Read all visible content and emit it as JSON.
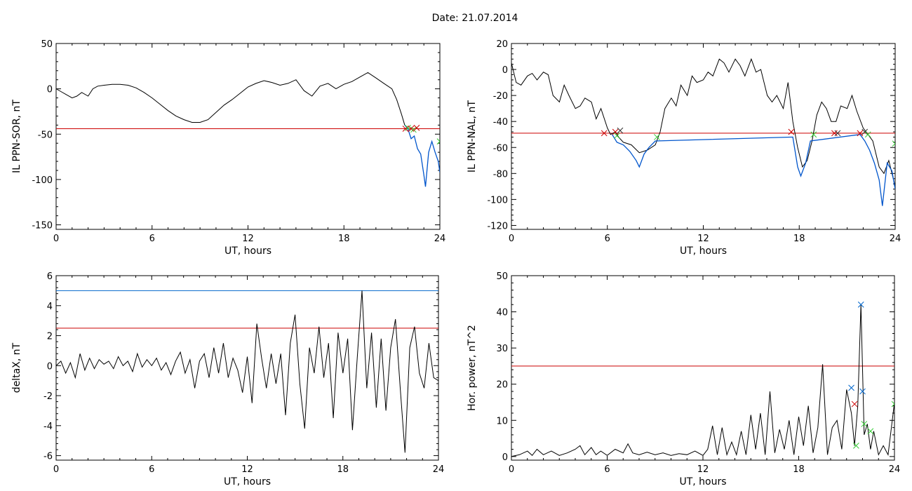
{
  "figure": {
    "title": "Date:  21.07.2014"
  },
  "colors": {
    "trace": "#000000",
    "threshold_red": "#cc0000",
    "threshold_blue": "#0066cc",
    "below_trace": "#0055cc",
    "marker_red": "#cc0000",
    "marker_green": "#33cc33",
    "marker_blue": "#0066cc"
  },
  "chart_data": [
    {
      "type": "line",
      "xlabel": "UT, hours",
      "ylabel": "IL PPN-SOR, nT",
      "xlim": [
        0,
        24
      ],
      "ylim": [
        -155,
        50
      ],
      "xticks": [
        0,
        6,
        12,
        18,
        24
      ],
      "yticks": [
        -150,
        -100,
        -50,
        0,
        50
      ],
      "series": [
        {
          "x": [
            0,
            0.3,
            0.6,
            1,
            1.3,
            1.6,
            2,
            2.3,
            2.6,
            3,
            3.5,
            4,
            4.5,
            5,
            5.5,
            6,
            6.5,
            7,
            7.5,
            8,
            8.5,
            9,
            9.5,
            10,
            10.5,
            11,
            11.5,
            12,
            12.5,
            13,
            13.5,
            14,
            14.5,
            15,
            15.5,
            16,
            16.5,
            17,
            17.5,
            18,
            18.5,
            19,
            19.5,
            20,
            20.5,
            21,
            21.3,
            21.6,
            21.8
          ],
          "y": [
            0,
            -3,
            -6,
            -10,
            -8,
            -4,
            -8,
            0,
            3,
            4,
            5,
            5,
            4,
            1,
            -4,
            -10,
            -17,
            -24,
            -30,
            -34,
            -37,
            -37,
            -34,
            -26,
            -18,
            -12,
            -5,
            2,
            6,
            9,
            7,
            4,
            6,
            10,
            -2,
            -8,
            3,
            6,
            0,
            5,
            8,
            13,
            18,
            12,
            6,
            0,
            -12,
            -28,
            -40
          ]
        }
      ],
      "below_threshold_series": {
        "x": [
          21.8,
          22,
          22.2,
          22.4,
          22.6,
          22.8,
          23,
          23.1,
          23.3,
          23.5,
          23.7,
          23.9,
          24
        ],
        "y": [
          -40,
          -44,
          -55,
          -52,
          -66,
          -72,
          -95,
          -108,
          -70,
          -58,
          -70,
          -80,
          -92
        ]
      },
      "thresholds": [
        {
          "y": -44,
          "color": "#cc0000"
        }
      ],
      "markers": [
        {
          "x": 21.85,
          "y": -44,
          "color": "#cc0000"
        },
        {
          "x": 22.0,
          "y": -43,
          "color": "#33cc33"
        },
        {
          "x": 22.2,
          "y": -44,
          "color": "#cc0000"
        },
        {
          "x": 22.35,
          "y": -45,
          "color": "#33cc33"
        },
        {
          "x": 22.55,
          "y": -43,
          "color": "#cc0000"
        },
        {
          "x": 24.0,
          "y": -58,
          "color": "#33cc33"
        }
      ]
    },
    {
      "type": "line",
      "xlabel": "UT, hours",
      "ylabel": "IL PPN-NAL, nT",
      "xlim": [
        0,
        24
      ],
      "ylim": [
        -123,
        20
      ],
      "xticks": [
        0,
        6,
        12,
        18,
        24
      ],
      "yticks": [
        -120,
        -100,
        -80,
        -60,
        -40,
        -20,
        0,
        20
      ],
      "series": [
        {
          "x": [
            0,
            0.3,
            0.6,
            1,
            1.3,
            1.6,
            2,
            2.3,
            2.6,
            3,
            3.3,
            3.6,
            4,
            4.3,
            4.6,
            5,
            5.3,
            5.6,
            6,
            6.2,
            6.5,
            6.7,
            7,
            7.5,
            8,
            8.5,
            9,
            9.3,
            9.6,
            10,
            10.3,
            10.6,
            11,
            11.3,
            11.6,
            12,
            12.3,
            12.6,
            13,
            13.3,
            13.6,
            14,
            14.3,
            14.6,
            15,
            15.3,
            15.6,
            16,
            16.3,
            16.6,
            17,
            17.3,
            17.6,
            17.9,
            18.2,
            18.5,
            18.8,
            19.1,
            19.4,
            19.7,
            20,
            20.3,
            20.6,
            21,
            21.3,
            21.6,
            22,
            22.3,
            22.6,
            23,
            23.3,
            23.6,
            24
          ],
          "y": [
            5,
            -10,
            -12,
            -5,
            -3,
            -8,
            -2,
            -4,
            -20,
            -25,
            -12,
            -20,
            -30,
            -28,
            -22,
            -25,
            -38,
            -30,
            -45,
            -50,
            -48,
            -52,
            -56,
            -58,
            -64,
            -62,
            -58,
            -48,
            -30,
            -22,
            -28,
            -12,
            -20,
            -5,
            -10,
            -8,
            -2,
            -5,
            8,
            5,
            -2,
            8,
            3,
            -5,
            8,
            -2,
            0,
            -20,
            -25,
            -20,
            -30,
            -10,
            -40,
            -60,
            -75,
            -70,
            -55,
            -35,
            -25,
            -30,
            -40,
            -40,
            -28,
            -30,
            -20,
            -32,
            -45,
            -50,
            -55,
            -75,
            -80,
            -70,
            -90
          ]
        }
      ],
      "below_threshold_series": {
        "x": [
          6.3,
          6.6,
          7,
          7.4,
          7.8,
          8,
          8.3,
          8.6,
          9,
          17.6,
          17.9,
          18.1,
          18.4,
          18.7,
          21.8,
          22.1,
          22.4,
          22.7,
          23,
          23.2,
          23.5,
          23.8,
          24
        ],
        "y": [
          -50,
          -56,
          -58,
          -63,
          -70,
          -75,
          -65,
          -60,
          -55,
          -52,
          -75,
          -82,
          -72,
          -55,
          -50,
          -55,
          -62,
          -72,
          -85,
          -105,
          -72,
          -78,
          -92
        ]
      },
      "thresholds": [
        {
          "y": -49,
          "color": "#cc0000"
        }
      ],
      "markers": [
        {
          "x": 5.8,
          "y": -49,
          "color": "#cc0000"
        },
        {
          "x": 6.5,
          "y": -48,
          "color": "#cc0000"
        },
        {
          "x": 6.6,
          "y": -51,
          "color": "#33cc33"
        },
        {
          "x": 6.8,
          "y": -47,
          "color": "#333333"
        },
        {
          "x": 9.1,
          "y": -52,
          "color": "#33cc33"
        },
        {
          "x": 17.5,
          "y": -48,
          "color": "#cc0000"
        },
        {
          "x": 18.9,
          "y": -50,
          "color": "#33cc33"
        },
        {
          "x": 20.2,
          "y": -49,
          "color": "#cc0000"
        },
        {
          "x": 20.4,
          "y": -49,
          "color": "#333333"
        },
        {
          "x": 21.8,
          "y": -49,
          "color": "#cc0000"
        },
        {
          "x": 22.1,
          "y": -48,
          "color": "#333333"
        },
        {
          "x": 22.3,
          "y": -50,
          "color": "#33cc33"
        },
        {
          "x": 24.0,
          "y": -57,
          "color": "#33cc33"
        }
      ]
    },
    {
      "type": "line",
      "xlabel": "UT, hours",
      "ylabel": "deltaX, nT",
      "xlim": [
        0,
        24
      ],
      "ylim": [
        -6.3,
        6
      ],
      "xticks": [
        0,
        6,
        12,
        18,
        24
      ],
      "yticks": [
        -6,
        -4,
        -2,
        0,
        2,
        4,
        6
      ],
      "series": [
        {
          "x": [
            0,
            0.3,
            0.6,
            0.9,
            1.2,
            1.5,
            1.8,
            2.1,
            2.4,
            2.7,
            3,
            3.3,
            3.6,
            3.9,
            4.2,
            4.5,
            4.8,
            5.1,
            5.4,
            5.7,
            6,
            6.3,
            6.6,
            6.9,
            7.2,
            7.5,
            7.8,
            8.1,
            8.4,
            8.7,
            9,
            9.3,
            9.6,
            9.9,
            10.2,
            10.5,
            10.8,
            11.1,
            11.4,
            11.7,
            12,
            12.3,
            12.6,
            12.9,
            13.2,
            13.5,
            13.8,
            14.1,
            14.4,
            14.7,
            15,
            15.3,
            15.6,
            15.9,
            16.2,
            16.5,
            16.8,
            17.1,
            17.4,
            17.7,
            18,
            18.3,
            18.6,
            18.9,
            19.2,
            19.5,
            19.8,
            20.1,
            20.4,
            20.7,
            21,
            21.3,
            21.6,
            21.9,
            22.2,
            22.5,
            22.8,
            23.1,
            23.4,
            23.7,
            24
          ],
          "y": [
            0,
            0.3,
            -0.5,
            0.2,
            -0.8,
            0.8,
            -0.3,
            0.5,
            -0.2,
            0.4,
            0.1,
            0.3,
            -0.2,
            0.6,
            0,
            0.3,
            -0.4,
            0.8,
            -0.1,
            0.4,
            0,
            0.5,
            -0.3,
            0.2,
            -0.6,
            0.3,
            0.9,
            -0.5,
            0.4,
            -1.5,
            0.3,
            0.8,
            -0.8,
            1.2,
            -0.5,
            1.5,
            -0.8,
            0.5,
            -0.3,
            -1.8,
            0.6,
            -2.5,
            2.8,
            0.5,
            -1.5,
            0.8,
            -1.2,
            0.8,
            -3.3,
            1.5,
            3.4,
            -1.2,
            -4.2,
            1.2,
            -0.5,
            2.6,
            -0.8,
            1.5,
            -3.5,
            2.2,
            -0.5,
            1.8,
            -4.3,
            0.5,
            5,
            -1.5,
            2.2,
            -2.8,
            1.8,
            -3,
            1.2,
            3.1,
            -1.5,
            -5.8,
            1.2,
            2.6,
            -0.5,
            -1.5,
            1.5,
            -0.8,
            -1
          ]
        }
      ],
      "thresholds": [
        {
          "y": 5,
          "color": "#0066cc"
        },
        {
          "y": 2.5,
          "color": "#cc0000"
        }
      ],
      "markers": []
    },
    {
      "type": "line",
      "xlabel": "UT, hours",
      "ylabel": "Hor. power, nT^2",
      "xlim": [
        0,
        24
      ],
      "ylim": [
        -1,
        50
      ],
      "xticks": [
        0,
        6,
        12,
        18,
        24
      ],
      "yticks": [
        0,
        10,
        20,
        30,
        40,
        50
      ],
      "series": [
        {
          "x": [
            0,
            0.5,
            1,
            1.3,
            1.6,
            2,
            2.5,
            3,
            3.5,
            4,
            4.3,
            4.6,
            5,
            5.3,
            5.6,
            6,
            6.5,
            7,
            7.3,
            7.6,
            8,
            8.5,
            9,
            9.5,
            10,
            10.5,
            11,
            11.5,
            12,
            12.3,
            12.6,
            12.9,
            13.2,
            13.5,
            13.8,
            14.1,
            14.4,
            14.7,
            15,
            15.3,
            15.6,
            15.9,
            16.2,
            16.5,
            16.8,
            17.1,
            17.4,
            17.7,
            18,
            18.3,
            18.6,
            18.9,
            19.2,
            19.5,
            19.8,
            20.1,
            20.4,
            20.7,
            21,
            21.3,
            21.5,
            21.7,
            21.9,
            22.1,
            22.3,
            22.5,
            22.7,
            23,
            23.3,
            23.6,
            24
          ],
          "y": [
            0,
            0.5,
            1.5,
            0.3,
            2,
            0.5,
            1.5,
            0.3,
            1,
            2,
            3,
            0.5,
            2.5,
            0.5,
            1.5,
            0.3,
            2,
            1,
            3.5,
            1,
            0.5,
            1.2,
            0.5,
            1,
            0.3,
            0.8,
            0.5,
            1.5,
            0.3,
            2,
            8.5,
            0.5,
            8,
            0.5,
            4,
            0.5,
            7,
            0.5,
            11.5,
            2,
            12,
            0.5,
            18,
            1,
            7.5,
            2,
            10,
            0.5,
            11,
            3,
            14,
            1,
            8,
            25.5,
            0.5,
            8,
            10,
            2,
            18.5,
            12,
            3,
            14,
            42,
            6,
            9,
            2,
            7,
            0.5,
            3,
            0.5,
            15
          ]
        }
      ],
      "thresholds": [
        {
          "y": 25,
          "color": "#cc0000"
        }
      ],
      "markers": [
        {
          "x": 21.3,
          "y": 19,
          "color": "#0066cc"
        },
        {
          "x": 21.5,
          "y": 14.5,
          "color": "#cc0000"
        },
        {
          "x": 21.6,
          "y": 3,
          "color": "#33cc33"
        },
        {
          "x": 21.9,
          "y": 42,
          "color": "#0066cc"
        },
        {
          "x": 22.0,
          "y": 18,
          "color": "#0066cc"
        },
        {
          "x": 22.1,
          "y": 9,
          "color": "#33cc33"
        },
        {
          "x": 22.5,
          "y": 7,
          "color": "#33cc33"
        },
        {
          "x": 24.0,
          "y": 14.5,
          "color": "#33cc33"
        }
      ]
    }
  ]
}
